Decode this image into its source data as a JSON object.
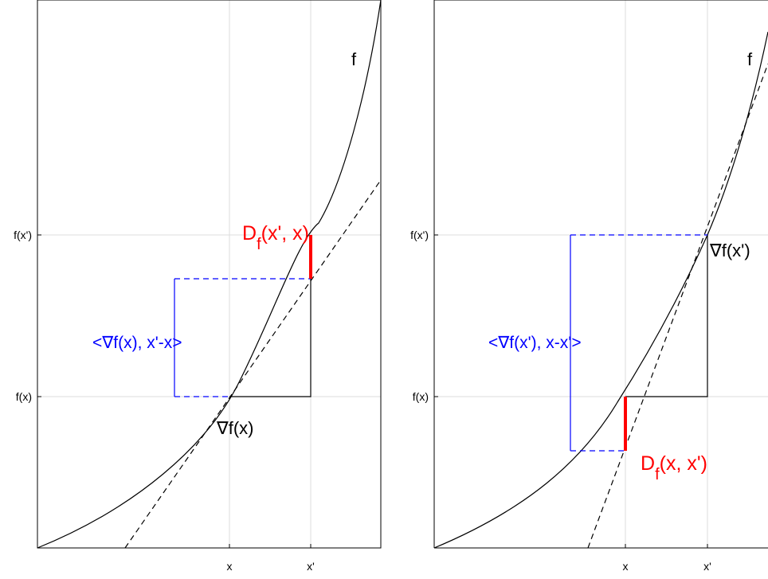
{
  "colors": {
    "curve": "#000000",
    "red": "#ff0000",
    "blue": "#0000ff",
    "grid": "#dcdcdc"
  },
  "panels": [
    {
      "id": "left",
      "x_ticks": [
        "x",
        "x'"
      ],
      "y_ticks": [
        "f(x)",
        "f(x')"
      ],
      "curve_label": "f",
      "gradient_label": "∇f(x)",
      "inner_product_label": "<∇f(x), x'-x>",
      "divergence_label": {
        "main": "D",
        "sub": "f",
        "args": "(x', x)"
      }
    },
    {
      "id": "right",
      "x_ticks": [
        "x",
        "x'"
      ],
      "y_ticks": [
        "f(x)",
        "f(x')"
      ],
      "curve_label": "f",
      "gradient_label": "∇f(x')",
      "inner_product_label": "<∇f(x'), x-x'>",
      "divergence_label": {
        "main": "D",
        "sub": "f",
        "args": "(x, x')"
      }
    }
  ]
}
